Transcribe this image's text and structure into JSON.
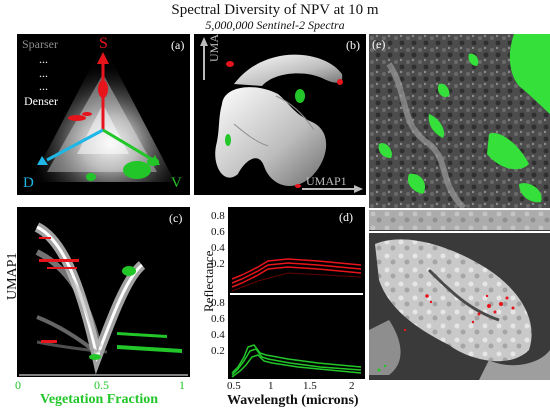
{
  "figure": {
    "title": "Spectral Diversity of NPV at 10 m",
    "subtitle": "5,000,000 Sentinel-2 Spectra"
  },
  "panel_a": {
    "label": "(a)",
    "sparser": "Sparser",
    "dots": [
      "...",
      "...",
      "..."
    ],
    "denser": "Denser",
    "vertex_s": "S",
    "vertex_d": "D",
    "vertex_v": "V"
  },
  "panel_b": {
    "label": "(b)",
    "axis_y": "UMAP2",
    "axis_x": "UMAP1"
  },
  "panel_c_image": {
    "label": "(e)"
  },
  "panel_c": {
    "label": "(c)",
    "ylabel": "UMAP1",
    "xlabel": "Vegetation Fraction",
    "xticks": [
      "0",
      "0.5",
      "1"
    ]
  },
  "panel_d": {
    "label": "(d)",
    "ylabel": "Reflectance",
    "xlabel": "Wavelength (microns)",
    "yticks": [
      "0.8",
      "0.6",
      "0.4",
      "0.2"
    ],
    "xticks": [
      "0.5",
      "1",
      "1.5",
      "2"
    ]
  },
  "colors": {
    "red": "#e8141c",
    "green": "#22c629",
    "cyan": "#1fb7e6",
    "dark_red": "#7a0000",
    "dark_green": "#0b6b10"
  }
}
